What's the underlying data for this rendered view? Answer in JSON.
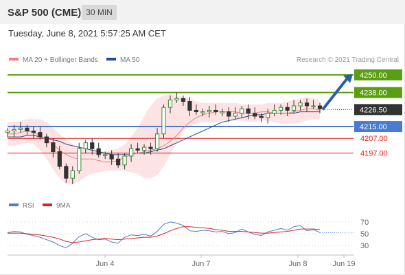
{
  "header": {
    "title": "S&P 500 (CME)",
    "interval": "30 MIN",
    "timestamp": "Tuesday, June 8, 2021 5:57:25 AM CET"
  },
  "legend": {
    "items": [
      {
        "label": "MA 20 + Bollinger Bands",
        "color": "#f08080"
      },
      {
        "label": "MA 50",
        "color": "#1f4e8c"
      }
    ],
    "credit": "Research © 2021 Trading Central"
  },
  "colors": {
    "resistance": "#5a9e12",
    "pivot": "#4a7bd0",
    "support": "#e02020",
    "last": "#333333",
    "arrow": "#2a5ea8",
    "band": "#fde3e3",
    "bull": "#2e8b2e",
    "bear": "#333333",
    "rsi": "#4a7bd0",
    "rsi_ma": "#e02020"
  },
  "chart_data": [
    {
      "type": "line",
      "title": "S&P 500 (CME)",
      "interval": "30 MIN",
      "x_ticks": [
        "Jun 4",
        "Jun 7",
        "Jun 8",
        "Jun 19"
      ],
      "ylim": [
        4168,
        4256
      ],
      "levels": [
        {
          "label": "4250.00",
          "value": 4250.0,
          "kind": "resistance"
        },
        {
          "label": "4238.00",
          "value": 4238.0,
          "kind": "resistance"
        },
        {
          "label": "4226.50",
          "value": 4226.5,
          "kind": "last"
        },
        {
          "label": "4215.00",
          "value": 4215.0,
          "kind": "pivot"
        },
        {
          "label": "4207.00",
          "value": 4207.0,
          "kind": "support"
        },
        {
          "label": "4197.00",
          "value": 4197.0,
          "kind": "support"
        }
      ],
      "series": [
        {
          "name": "MA 20 + Bollinger Bands",
          "values": [
            4210,
            4210,
            4211,
            4212,
            4211,
            4209,
            4206,
            4203,
            4199,
            4196,
            4194,
            4193,
            4193,
            4193,
            4192,
            4191,
            4191,
            4192,
            4194,
            4196,
            4197,
            4198,
            4199,
            4200,
            4202,
            4205,
            4209,
            4214,
            4218,
            4221,
            4223,
            4224,
            4225,
            4225,
            4225,
            4225,
            4224,
            4224,
            4224,
            4225,
            4225,
            4224,
            4224,
            4224,
            4225,
            4226,
            4227,
            4227,
            4226
          ]
        },
        {
          "name": "MA 50",
          "values": [
            4208,
            4208,
            4208,
            4209,
            4209,
            4208,
            4207,
            4206,
            4205,
            4203,
            4202,
            4201,
            4200,
            4199,
            4198,
            4197,
            4196,
            4196,
            4196,
            4196,
            4197,
            4197,
            4198,
            4199,
            4200,
            4202,
            4204,
            4206,
            4208,
            4210,
            4212,
            4214,
            4216,
            4218,
            4219,
            4220,
            4221,
            4222,
            4223,
            4223,
            4224,
            4224,
            4224,
            4224,
            4224,
            4225,
            4225,
            4225,
            4225
          ]
        }
      ],
      "bands": {
        "upper": [
          4218,
          4218,
          4219,
          4220,
          4220,
          4220,
          4218,
          4214,
          4210,
          4206,
          4203,
          4201,
          4200,
          4199,
          4199,
          4198,
          4199,
          4200,
          4203,
          4208,
          4214,
          4222,
          4229,
          4234,
          4236,
          4237,
          4236,
          4235,
          4234,
          4232,
          4231,
          4231,
          4231,
          4231,
          4231,
          4231,
          4230,
          4230,
          4230,
          4230,
          4231,
          4231,
          4231,
          4232,
          4233,
          4234,
          4235,
          4234,
          4233
        ],
        "lower": [
          4202,
          4202,
          4203,
          4204,
          4203,
          4199,
          4193,
          4186,
          4180,
          4176,
          4176,
          4178,
          4181,
          4183,
          4184,
          4185,
          4185,
          4185,
          4185,
          4184,
          4183,
          4180,
          4180,
          4182,
          4188,
          4196,
          4204,
          4212,
          4215,
          4217,
          4218,
          4218,
          4218,
          4219,
          4219,
          4219,
          4219,
          4218,
          4218,
          4219,
          4219,
          4218,
          4217,
          4217,
          4217,
          4218,
          4219,
          4220,
          4220
        ]
      },
      "price": [
        4212,
        4213,
        4214,
        4212,
        4211,
        4208,
        4204,
        4198,
        4188,
        4180,
        4185,
        4200,
        4204,
        4200,
        4196,
        4196,
        4193,
        4189,
        4195,
        4200,
        4199,
        4201,
        4200,
        4210,
        4228,
        4233,
        4234,
        4232,
        4226,
        4225,
        4225,
        4226,
        4225,
        4225,
        4222,
        4224,
        4227,
        4224,
        4222,
        4221,
        4224,
        4226,
        4228,
        4226,
        4229,
        4231,
        4229,
        4229,
        4227
      ],
      "projection": {
        "from": 4226.5,
        "to": 4250.0
      }
    },
    {
      "type": "line",
      "title": "RSI",
      "ylim": [
        15,
        85
      ],
      "y_ticks": [
        70,
        50,
        30
      ],
      "series": [
        {
          "name": "RSI",
          "values": [
            52,
            54,
            53,
            49,
            47,
            44,
            40,
            36,
            30,
            26,
            34,
            45,
            50,
            44,
            40,
            41,
            36,
            34,
            44,
            48,
            47,
            49,
            46,
            54,
            66,
            70,
            68,
            64,
            55,
            54,
            56,
            55,
            53,
            54,
            50,
            52,
            58,
            53,
            49,
            47,
            53,
            56,
            59,
            56,
            62,
            64,
            55,
            57,
            52
          ]
        },
        {
          "name": "9MA",
          "values": [
            51,
            51,
            51,
            50,
            49,
            48,
            46,
            44,
            41,
            37,
            35,
            36,
            38,
            40,
            41,
            42,
            41,
            40,
            41,
            42,
            43,
            44,
            44,
            46,
            50,
            55,
            59,
            62,
            62,
            61,
            60,
            59,
            57,
            56,
            54,
            54,
            54,
            53,
            52,
            51,
            51,
            52,
            53,
            54,
            56,
            58,
            58,
            58,
            57
          ]
        }
      ]
    }
  ]
}
